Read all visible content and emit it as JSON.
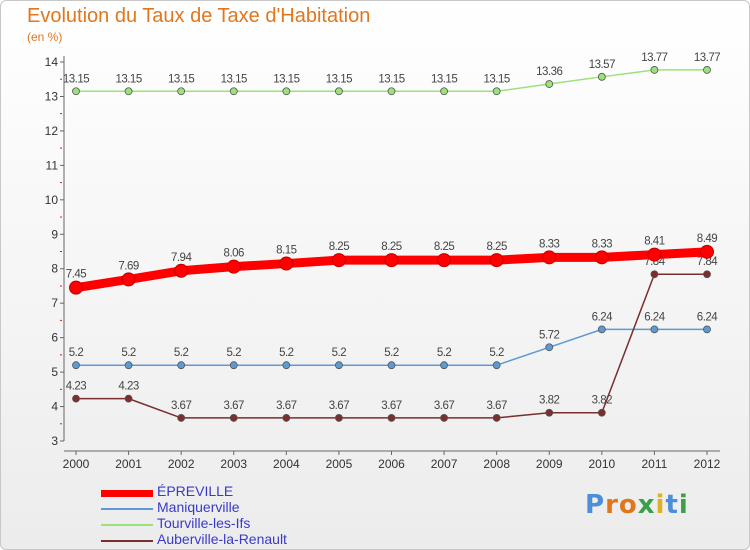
{
  "chart_data": {
    "type": "line",
    "title": "Evolution du Taux de Taxe d'Habitation",
    "unit_label": "(en %)",
    "ylim": [
      3,
      14
    ],
    "y_ticks": [
      3,
      4,
      5,
      6,
      7,
      8,
      9,
      10,
      11,
      12,
      13,
      14
    ],
    "grid": false,
    "legend_position": "bottom-left",
    "categories": [
      "2000",
      "2001",
      "2002",
      "2003",
      "2004",
      "2005",
      "2006",
      "2007",
      "2008",
      "2009",
      "2010",
      "2011",
      "2012"
    ],
    "series": [
      {
        "name": "ÉPREVILLE",
        "color": "#ff0000",
        "values": [
          7.45,
          7.69,
          7.94,
          8.06,
          8.15,
          8.25,
          8.25,
          8.25,
          8.25,
          8.33,
          8.33,
          8.41,
          8.49
        ]
      },
      {
        "name": "Maniquerville",
        "color": "#5b9bd5",
        "values": [
          5.2,
          5.2,
          5.2,
          5.2,
          5.2,
          5.2,
          5.2,
          5.2,
          5.2,
          5.72,
          6.24,
          6.24,
          6.24
        ]
      },
      {
        "name": "Tourville-les-Ifs",
        "color": "#9be27a",
        "values": [
          13.15,
          13.15,
          13.15,
          13.15,
          13.15,
          13.15,
          13.15,
          13.15,
          13.15,
          13.36,
          13.57,
          13.77,
          13.77
        ]
      },
      {
        "name": "Auberville-la-Renault",
        "color": "#7a2e2e",
        "values": [
          4.23,
          4.23,
          3.67,
          3.67,
          3.67,
          3.67,
          3.67,
          3.67,
          3.67,
          3.82,
          3.82,
          7.84,
          7.84
        ]
      }
    ]
  },
  "logo": {
    "letters": [
      "P",
      "r",
      "o",
      "x",
      "i",
      "t",
      "i"
    ],
    "colors": [
      "#4a8fd8",
      "#e0771d",
      "#e0771d",
      "#3aa04a",
      "#e0b020",
      "#4a8fd8",
      "#3aa04a"
    ]
  }
}
